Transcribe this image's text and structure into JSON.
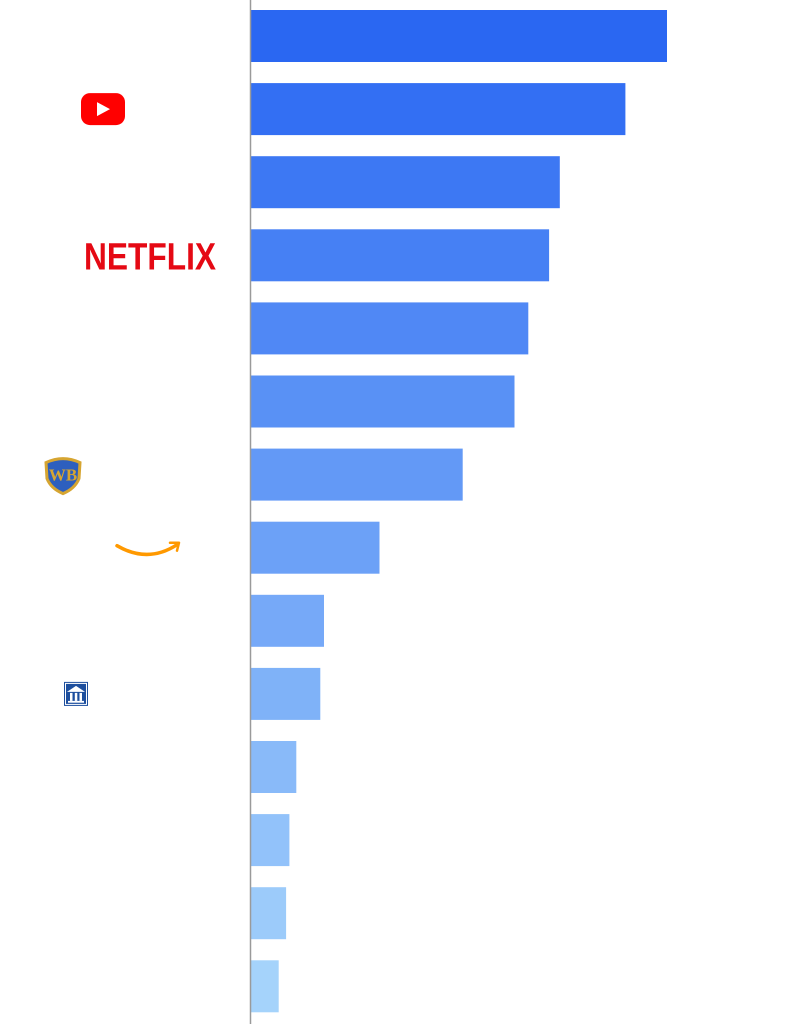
{
  "chart_data": {
    "type": "bar",
    "orientation": "horizontal",
    "title": "",
    "xlabel": "",
    "ylabel": "",
    "categories": [
      {
        "logo": "",
        "value": 9.0
      },
      {
        "logo": "youtube-logo",
        "value": 8.1
      },
      {
        "logo": "",
        "value": 6.68
      },
      {
        "logo": "netflix-logo",
        "value": 6.45
      },
      {
        "logo": "",
        "value": 6.0
      },
      {
        "logo": "",
        "value": 5.7
      },
      {
        "logo": "warner-bros-logo",
        "value": 4.58
      },
      {
        "logo": "amazon-logo",
        "value": 2.78
      },
      {
        "logo": "",
        "value": 1.58
      },
      {
        "logo": "paramount-logo",
        "value": 1.5
      },
      {
        "logo": "",
        "value": 0.98
      },
      {
        "logo": "",
        "value": 0.83
      },
      {
        "logo": "",
        "value": 0.76
      },
      {
        "logo": "",
        "value": 0.6
      }
    ],
    "xlim": [
      0,
      9.0
    ],
    "grid": false,
    "legend": "none",
    "logo_texts": {
      "netflix": "NETFLIX",
      "warner_bros": "WB"
    },
    "colors": {
      "gradient_start": "#2a67f2",
      "gradient_end": "#a5d3fb",
      "axis": "#9a9a9a",
      "youtube_red": "#ff0000",
      "netflix_red": "#e50914",
      "amazon_orange": "#ff9900",
      "wb_blue": "#2d5fbe",
      "wb_gold": "#d6a531",
      "paramount_blue": "#1d4f9e"
    }
  }
}
